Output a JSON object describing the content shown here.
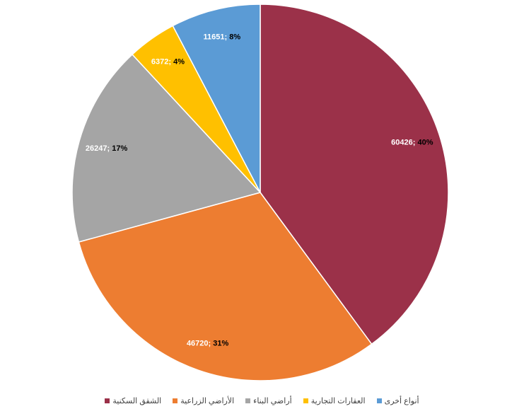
{
  "chart_data": {
    "type": "pie",
    "categories": [
      "الشقق السكنية",
      "الأراضي الزراعية",
      "أراضي البناء",
      "العقارات التجارية",
      "أنواع أخرى"
    ],
    "values": [
      60426,
      46720,
      26247,
      6372,
      11651
    ],
    "percentages": [
      40,
      31,
      17,
      4,
      8
    ],
    "percent_labels": [
      "40%",
      "31%",
      "17%",
      "4%",
      "8%"
    ],
    "label_separator": "; ",
    "colors": [
      "#9b3149",
      "#ed7d31",
      "#a5a5a5",
      "#ffc000",
      "#5b9bd5"
    ],
    "legend": "bottom"
  }
}
